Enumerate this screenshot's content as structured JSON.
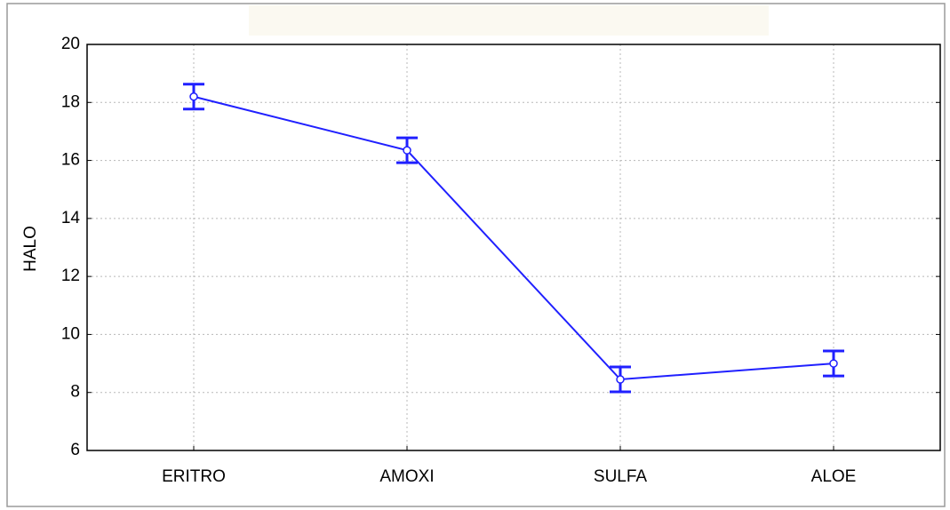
{
  "chart_data": {
    "type": "line",
    "y_label": "HALO",
    "categories": [
      "ERITRO",
      "AMOXI",
      "SULFA",
      "ALOE"
    ],
    "series": [
      {
        "color": "#2020ff",
        "values": [
          18.2,
          16.35,
          8.45,
          9.0
        ],
        "errors": [
          0.43,
          0.43,
          0.43,
          0.43
        ]
      }
    ],
    "ylim": [
      6,
      20
    ],
    "yticks": [
      6,
      8,
      10,
      12,
      14,
      16,
      18,
      20
    ],
    "grid": true
  }
}
